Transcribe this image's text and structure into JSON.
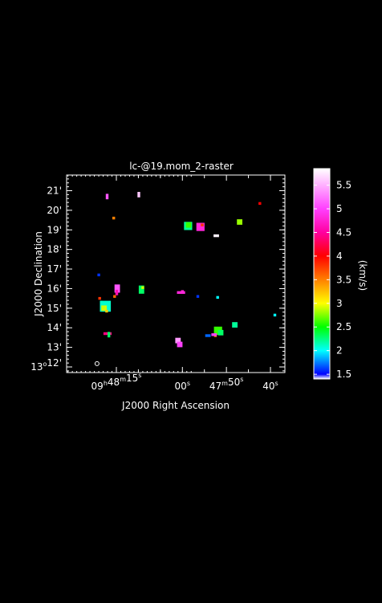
{
  "chart_data": {
    "type": "heatmap",
    "title": "lc-@19.mom_2-raster",
    "xlabel": "J2000 Right Ascension",
    "ylabel": "J2000 Declination",
    "colorbar_label": "(km/s)",
    "x_ticks": [
      {
        "ra": "09h48m15s",
        "parts": [
          [
            "09",
            ""
          ],
          [
            "h",
            "sup"
          ],
          [
            "48",
            ""
          ],
          [
            "m",
            "sup"
          ],
          [
            "15",
            ""
          ],
          [
            "s",
            "sup"
          ]
        ]
      },
      {
        "ra": "09h48m10s",
        "parts": []
      },
      {
        "ra": "09h48m05s",
        "parts": []
      },
      {
        "ra": "09h48m00s",
        "parts": [
          [
            "00",
            ""
          ],
          [
            "s",
            "sup"
          ]
        ]
      },
      {
        "ra": "09h47m55s",
        "parts": []
      },
      {
        "ra": "09h47m50s",
        "parts": [
          [
            "47",
            ""
          ],
          [
            "m",
            "sup"
          ],
          [
            "50",
            ""
          ],
          [
            "s",
            "sup"
          ]
        ]
      },
      {
        "ra": "09h47m45s",
        "parts": []
      },
      {
        "ra": "09h47m40s",
        "parts": [
          [
            "40",
            ""
          ],
          [
            "s",
            "sup"
          ]
        ]
      }
    ],
    "y_ticks": [
      {
        "dec": "13d12m",
        "parts": [
          [
            "13",
            ""
          ],
          [
            "o",
            "sup"
          ],
          [
            "12",
            ""
          ],
          [
            "'",
            ""
          ]
        ]
      },
      {
        "dec": "13d13m",
        "parts": [
          [
            "13",
            ""
          ],
          [
            "'",
            ""
          ]
        ]
      },
      {
        "dec": "13d14m",
        "parts": [
          [
            "14",
            ""
          ],
          [
            "'",
            ""
          ]
        ]
      },
      {
        "dec": "13d15m",
        "parts": [
          [
            "15",
            ""
          ],
          [
            "'",
            ""
          ]
        ]
      },
      {
        "dec": "13d16m",
        "parts": [
          [
            "16",
            ""
          ],
          [
            "'",
            ""
          ]
        ]
      },
      {
        "dec": "13d17m",
        "parts": [
          [
            "17",
            ""
          ],
          [
            "'",
            ""
          ]
        ]
      },
      {
        "dec": "13d18m",
        "parts": [
          [
            "18",
            ""
          ],
          [
            "'",
            ""
          ]
        ]
      },
      {
        "dec": "13d19m",
        "parts": [
          [
            "19",
            ""
          ],
          [
            "'",
            ""
          ]
        ]
      },
      {
        "dec": "13d20m",
        "parts": [
          [
            "20",
            ""
          ],
          [
            "'",
            ""
          ]
        ]
      },
      {
        "dec": "13d21m",
        "parts": [
          [
            "21",
            ""
          ],
          [
            "'",
            ""
          ]
        ]
      }
    ],
    "colorbar": {
      "range": [
        1.4,
        5.85
      ],
      "ticks": [
        1.5,
        2,
        2.5,
        3,
        3.5,
        4,
        4.5,
        5,
        5.5
      ],
      "tick_labels": [
        "1.5",
        "2",
        "2.5",
        "3",
        "3.5",
        "4",
        "4.5",
        "5",
        "5.5"
      ],
      "stops": [
        {
          "v": 1.4,
          "color": "#ffffff"
        },
        {
          "v": 1.5,
          "color": "#0000ff"
        },
        {
          "v": 2.0,
          "color": "#00ffff"
        },
        {
          "v": 2.5,
          "color": "#00ff00"
        },
        {
          "v": 3.0,
          "color": "#ffff00"
        },
        {
          "v": 3.5,
          "color": "#ff8000"
        },
        {
          "v": 4.0,
          "color": "#ff0000"
        },
        {
          "v": 4.5,
          "color": "#ff00a0"
        },
        {
          "v": 5.0,
          "color": "#ff40ff"
        },
        {
          "v": 5.5,
          "color": "#ffb0ff"
        },
        {
          "v": 5.85,
          "color": "#ffffff"
        }
      ]
    },
    "pixels": [
      {
        "ra": 17.1,
        "dec": 20.7,
        "value": 5.1,
        "w": 1,
        "h": 2
      },
      {
        "ra": 9.9,
        "dec": 20.8,
        "value": 5.6,
        "w": 1,
        "h": 2
      },
      {
        "ra": 15.6,
        "dec": 19.6,
        "value": 3.5,
        "w": 1,
        "h": 1
      },
      {
        "ra": 42.4,
        "dec": 20.35,
        "value": 4.0,
        "w": 1,
        "h": 1
      },
      {
        "ra": 47.0,
        "dec": 19.4,
        "value": 2.8,
        "w": 2,
        "h": 2
      },
      {
        "ra": 58.7,
        "dec": 19.2,
        "value": 2.2,
        "w": 3,
        "h": 3
      },
      {
        "ra": 58.6,
        "dec": 19.25,
        "value": 2.6,
        "w": 2,
        "h": 2
      },
      {
        "ra": 55.9,
        "dec": 19.15,
        "value": 4.8,
        "w": 3,
        "h": 3
      },
      {
        "ra": 55.5,
        "dec": 19.25,
        "value": 3.8,
        "w": 1,
        "h": 1
      },
      {
        "ra": 52.3,
        "dec": 18.7,
        "value": 5.8,
        "w": 2,
        "h": 1
      },
      {
        "ra": 19.0,
        "dec": 16.7,
        "value": 1.6,
        "w": 1,
        "h": 1
      },
      {
        "ra": 14.8,
        "dec": 16.0,
        "value": 5.1,
        "w": 2,
        "h": 3
      },
      {
        "ra": 14.9,
        "dec": 15.8,
        "value": 4.6,
        "w": 1,
        "h": 2
      },
      {
        "ra": 15.4,
        "dec": 15.6,
        "value": 3.6,
        "w": 1,
        "h": 1
      },
      {
        "ra": 9.3,
        "dec": 15.95,
        "value": 2.3,
        "w": 2,
        "h": 3
      },
      {
        "ra": 9.0,
        "dec": 16.05,
        "value": 2.9,
        "w": 1,
        "h": 1
      },
      {
        "ra": 0.3,
        "dec": 15.8,
        "value": 4.8,
        "w": 3,
        "h": 1
      },
      {
        "ra": 0.0,
        "dec": 15.85,
        "value": 4.8,
        "w": 1,
        "h": 1
      },
      {
        "ra": 56.5,
        "dec": 15.6,
        "value": 1.6,
        "w": 1,
        "h": 1
      },
      {
        "ra": 52.0,
        "dec": 15.55,
        "value": 2.0,
        "w": 1,
        "h": 1
      },
      {
        "ra": 39.0,
        "dec": 14.65,
        "value": 2.0,
        "w": 1,
        "h": 1
      },
      {
        "ra": 18.8,
        "dec": 15.5,
        "value": 3.8,
        "w": 1,
        "h": 1
      },
      {
        "ra": 18.4,
        "dec": 15.3,
        "value": 3.0,
        "w": 1,
        "h": 1
      },
      {
        "ra": 17.5,
        "dec": 15.1,
        "value": 2.1,
        "w": 4,
        "h": 4
      },
      {
        "ra": 17.8,
        "dec": 15.0,
        "value": 2.9,
        "w": 2,
        "h": 2
      },
      {
        "ra": 17.2,
        "dec": 14.85,
        "value": 3.2,
        "w": 1,
        "h": 1
      },
      {
        "ra": 17.0,
        "dec": 13.7,
        "value": 4.4,
        "w": 3,
        "h": 1
      },
      {
        "ra": 16.7,
        "dec": 13.65,
        "value": 2.3,
        "w": 1,
        "h": 2
      },
      {
        "ra": 1.0,
        "dec": 13.35,
        "value": 5.4,
        "w": 2,
        "h": 2
      },
      {
        "ra": 0.6,
        "dec": 13.15,
        "value": 5.0,
        "w": 2,
        "h": 2
      },
      {
        "ra": 54.2,
        "dec": 13.6,
        "value": 1.7,
        "w": 2,
        "h": 1
      },
      {
        "ra": 51.9,
        "dec": 13.85,
        "value": 2.6,
        "w": 3,
        "h": 3
      },
      {
        "ra": 51.3,
        "dec": 13.75,
        "value": 2.3,
        "w": 2,
        "h": 2
      },
      {
        "ra": 52.5,
        "dec": 13.6,
        "value": 3.5,
        "w": 1,
        "h": 1
      },
      {
        "ra": 52.8,
        "dec": 13.65,
        "value": 5.0,
        "w": 2,
        "h": 1
      },
      {
        "ra": 48.1,
        "dec": 14.15,
        "value": 2.2,
        "w": 2,
        "h": 2
      }
    ],
    "beam": {
      "ra": 19.4,
      "dec": 12.7
    }
  }
}
